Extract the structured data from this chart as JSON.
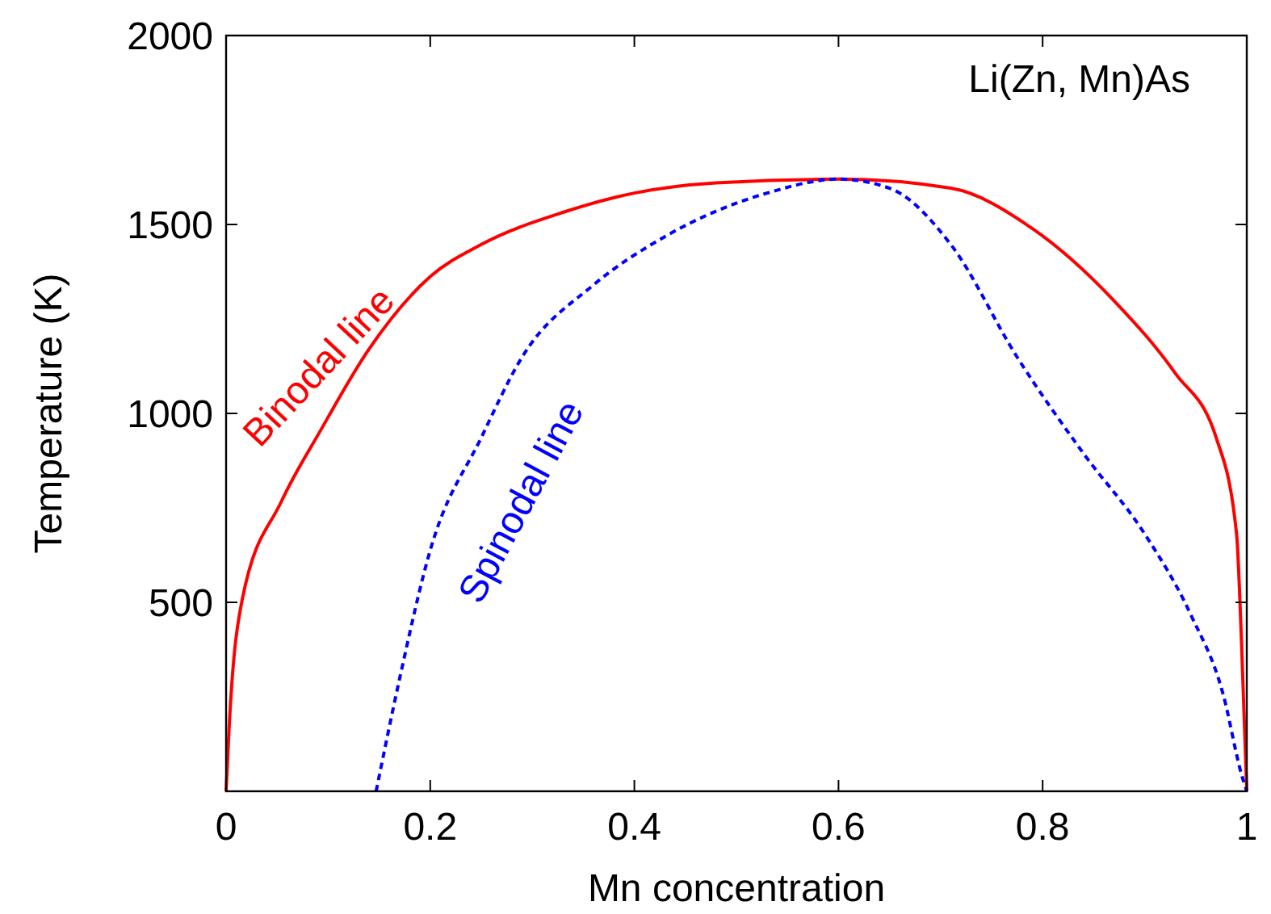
{
  "chart_data": {
    "type": "line",
    "xlabel": "Mn concentration",
    "ylabel": "Temperature (K)",
    "xlim": [
      0,
      1
    ],
    "xticks": [
      0,
      0.2,
      0.4,
      0.6,
      0.8,
      1
    ],
    "ylim": [
      0,
      2000
    ],
    "yticks": [
      500,
      1000,
      1500,
      2000
    ],
    "grid": false,
    "marker": "none",
    "series": [
      {
        "color": "#ff0000",
        "line_style": "solid",
        "x": [
          0,
          0.003,
          0.016,
          0.054,
          0.093,
          0.14,
          0.2,
          0.25,
          0.33,
          0.4,
          0.48,
          0.6,
          0.71,
          0.79,
          0.87,
          0.93,
          0.97,
          0.99,
          0.995,
          1
        ],
        "values": [
          0,
          170,
          510,
          766,
          957,
          1170,
          1362,
          1447,
          1532,
          1583,
          1610,
          1620,
          1596,
          1489,
          1298,
          1106,
          936,
          681,
          383,
          0
        ]
      },
      {
        "color": "#0000ff",
        "line_style": "dashed",
        "x": [
          0.147,
          0.17,
          0.2,
          0.25,
          0.29,
          0.36,
          0.43,
          0.53,
          0.6,
          0.65,
          0.71,
          0.775,
          0.84,
          0.9,
          0.945,
          0.977,
          0.995,
          1
        ],
        "values": [
          0,
          298,
          638,
          936,
          1149,
          1340,
          1468,
          1583,
          1620,
          1596,
          1447,
          1149,
          894,
          681,
          468,
          255,
          43,
          0
        ]
      }
    ],
    "annotations": [
      "Binodal line",
      "Spinodal line",
      "Li(Zn, Mn)As"
    ]
  }
}
